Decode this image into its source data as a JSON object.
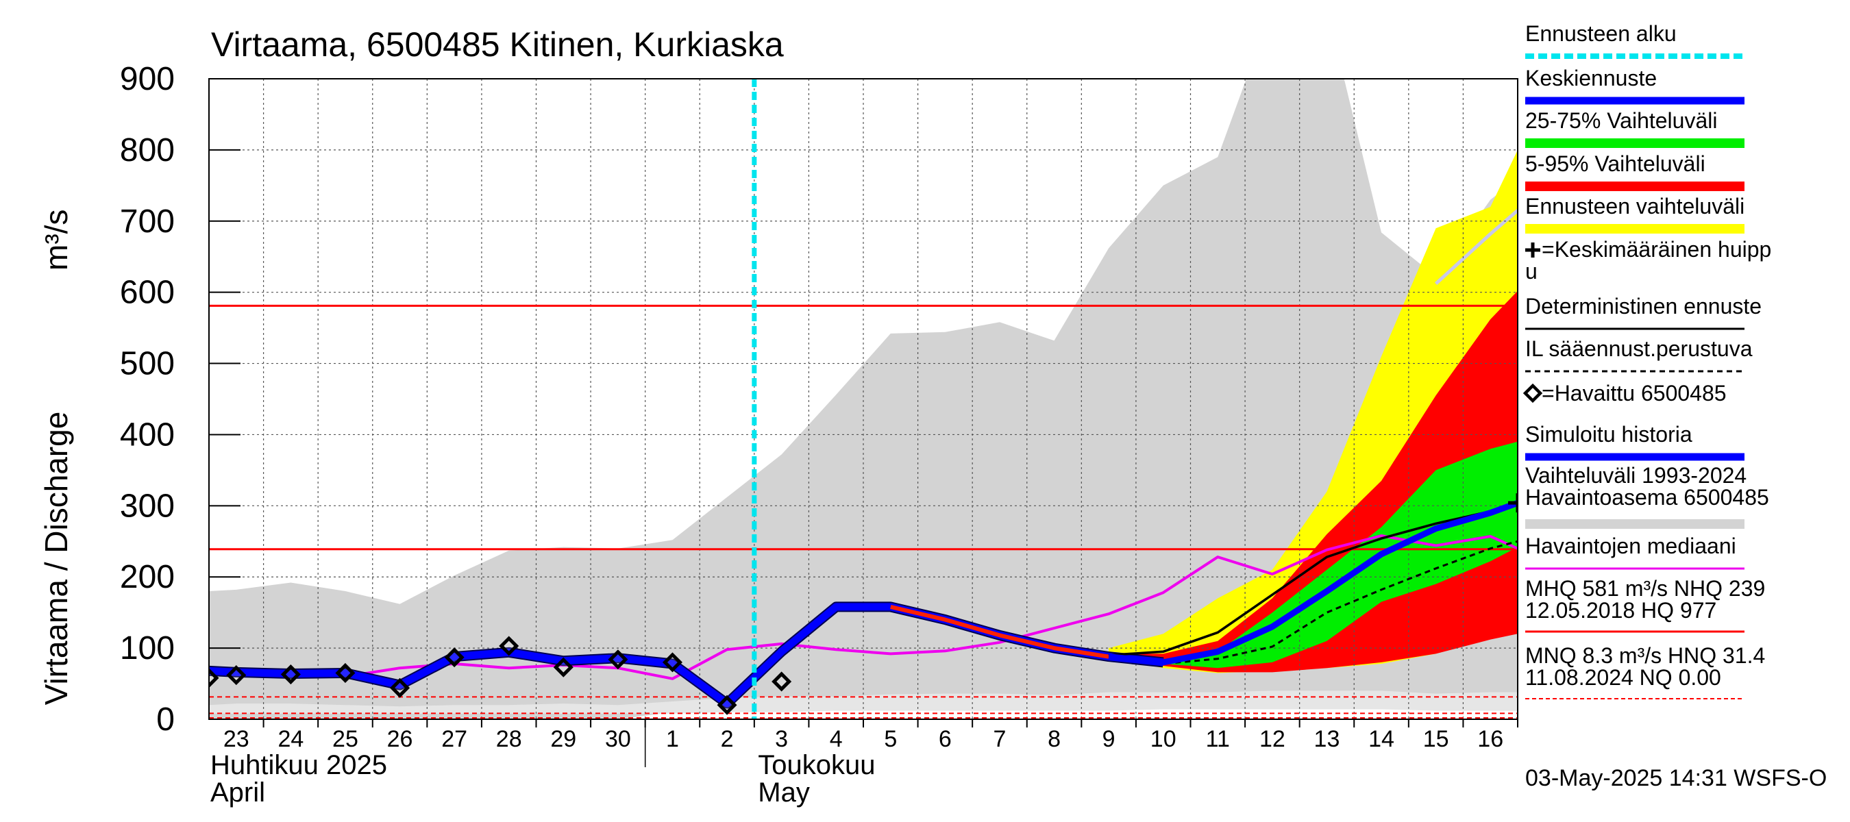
{
  "chart_data": {
    "type": "area",
    "title": "Virtaama, 6500485 Kitinen, Kurkiaska",
    "ylabel": "Virtaama / Discharge",
    "yunit": "m³/s",
    "ylim": [
      0,
      900
    ],
    "yticks": [
      0,
      100,
      200,
      300,
      400,
      500,
      600,
      700,
      800,
      900
    ],
    "xlim": [
      -0.5,
      23.5
    ],
    "xticks": [
      {
        "i": 0,
        "label": "23"
      },
      {
        "i": 1,
        "label": "24"
      },
      {
        "i": 2,
        "label": "25"
      },
      {
        "i": 3,
        "label": "26"
      },
      {
        "i": 4,
        "label": "27"
      },
      {
        "i": 5,
        "label": "28"
      },
      {
        "i": 6,
        "label": "29"
      },
      {
        "i": 7,
        "label": "30"
      },
      {
        "i": 8,
        "label": "1"
      },
      {
        "i": 9,
        "label": "2"
      },
      {
        "i": 10,
        "label": "3"
      },
      {
        "i": 11,
        "label": "4"
      },
      {
        "i": 12,
        "label": "5"
      },
      {
        "i": 13,
        "label": "6"
      },
      {
        "i": 14,
        "label": "7"
      },
      {
        "i": 15,
        "label": "8"
      },
      {
        "i": 16,
        "label": "9"
      },
      {
        "i": 17,
        "label": "10"
      },
      {
        "i": 18,
        "label": "11"
      },
      {
        "i": 19,
        "label": "12"
      },
      {
        "i": 20,
        "label": "13"
      },
      {
        "i": 21,
        "label": "14"
      },
      {
        "i": 22,
        "label": "15"
      },
      {
        "i": 23,
        "label": "16"
      }
    ],
    "month_labels": [
      {
        "x": -0.5,
        "line1": "Huhtikuu  2025",
        "line2": "April"
      },
      {
        "x": 8.5,
        "line1": "Toukokuu",
        "line2": "May"
      }
    ],
    "month_divider_x": 7.5,
    "forecast_start_x": 9.5,
    "hlines": {
      "MHQ": 581,
      "NHQ": 239,
      "MNQ": 8.3,
      "HNQ": 31.4,
      "NQ": 0.0
    },
    "history_range": {
      "x": [
        -0.5,
        0,
        1,
        2,
        3,
        4,
        5,
        6,
        7,
        8,
        9,
        10,
        11,
        12,
        13,
        14,
        15,
        16,
        17,
        18,
        19,
        20,
        21,
        22,
        23,
        23.5
      ],
      "upper": [
        180,
        182,
        192,
        180,
        162,
        202,
        237,
        242,
        240,
        252,
        312,
        372,
        456,
        542,
        544,
        558,
        532,
        662,
        750,
        790,
        1000,
        1000,
        684,
        622,
        730,
        760
      ],
      "lower": [
        0,
        0,
        0,
        0,
        0,
        0,
        0,
        0,
        0,
        10,
        12,
        15,
        18,
        20,
        20,
        22,
        20,
        25,
        25,
        28,
        30,
        30,
        28,
        26,
        28,
        28
      ]
    },
    "history_lower_band": {
      "x": [
        -0.5,
        0,
        1,
        2,
        3,
        4,
        5,
        6,
        7,
        8,
        9,
        10,
        11,
        12,
        13,
        14,
        15,
        16,
        17,
        18,
        19,
        20,
        21,
        22,
        23,
        23.5
      ],
      "upper": [
        20,
        22,
        22,
        20,
        18,
        20,
        20,
        22,
        20,
        25,
        30,
        32,
        32,
        35,
        36,
        36,
        34,
        38,
        38,
        38,
        40,
        40,
        40,
        36,
        38,
        38
      ],
      "lower": [
        8,
        8,
        8,
        8,
        8,
        8,
        8,
        8,
        8,
        8,
        10,
        10,
        12,
        12,
        12,
        12,
        12,
        12,
        14,
        14,
        14,
        14,
        14,
        12,
        12,
        12
      ]
    },
    "forecast_x": [
      16,
      17,
      18,
      19,
      20,
      21,
      22,
      23,
      23.5
    ],
    "ennuste_range": {
      "upper": [
        100,
        120,
        170,
        210,
        320,
        510,
        690,
        720,
        800
      ],
      "lower": [
        85,
        72,
        65,
        68,
        72,
        78,
        92,
        122,
        136
      ]
    },
    "p5_95": {
      "upper": [
        92,
        92,
        110,
        170,
        260,
        335,
        455,
        562,
        602
      ],
      "lower": [
        86,
        75,
        66,
        66,
        72,
        80,
        92,
        112,
        120
      ]
    },
    "p25_75": {
      "upper": [
        90,
        84,
        95,
        150,
        210,
        270,
        350,
        380,
        390
      ],
      "lower": [
        87,
        78,
        72,
        80,
        110,
        165,
        190,
        222,
        242
      ]
    },
    "keskiennuste": [
      88,
      80,
      95,
      130,
      180,
      232,
      268,
      290,
      304
    ],
    "deterministic": [
      90,
      95,
      122,
      175,
      228,
      254,
      275,
      292,
      306
    ],
    "il_forecast": [
      88,
      78,
      85,
      102,
      150,
      182,
      212,
      240,
      250
    ],
    "ennuste_upper_line": [
      null,
      null,
      null,
      null,
      null,
      null,
      612,
      682,
      715
    ],
    "peak_marker": {
      "x": 23.5,
      "y": 304
    },
    "simulated_history": {
      "x": [
        -0.5,
        0,
        1,
        2,
        3,
        4,
        5,
        6,
        7,
        8,
        9,
        10,
        11,
        12,
        13,
        14,
        15,
        16,
        17
      ],
      "y": [
        68,
        66,
        64,
        65,
        48,
        88,
        94,
        82,
        86,
        78,
        22,
        95,
        158,
        158,
        140,
        118,
        100,
        88,
        80
      ]
    },
    "median": {
      "x": [
        -0.5,
        0,
        1,
        2,
        3,
        4,
        5,
        6,
        7,
        8,
        9,
        10,
        11,
        12,
        13,
        14,
        15,
        16,
        17,
        18,
        19,
        20,
        21,
        22,
        23,
        23.5
      ],
      "y": [
        70,
        68,
        64,
        60,
        72,
        78,
        72,
        76,
        72,
        57,
        98,
        106,
        98,
        92,
        96,
        108,
        128,
        148,
        178,
        228,
        204,
        238,
        258,
        244,
        257,
        240
      ]
    },
    "observed": {
      "x": [
        -0.5,
        0,
        1,
        2,
        3,
        4,
        5,
        6,
        7,
        8,
        9,
        10
      ],
      "y": [
        58,
        62,
        63,
        65,
        44,
        87,
        103,
        73,
        84,
        80,
        20,
        53
      ]
    },
    "legend": [
      {
        "key": "ennusteen_alku",
        "label": "Ennusteen alku"
      },
      {
        "key": "keskiennuste",
        "label": "Keskiennuste"
      },
      {
        "key": "p25_75",
        "label": "25-75% Vaihteluväli"
      },
      {
        "key": "p5_95",
        "label": "5-95% Vaihteluväli"
      },
      {
        "key": "ennuste_range",
        "label": "Ennusteen vaihteluväli"
      },
      {
        "key": "peak",
        "label": "=Keskimääräinen huipp",
        "label2": "u"
      },
      {
        "key": "deterministic",
        "label": "Deterministinen ennuste"
      },
      {
        "key": "il",
        "label": "IL sääennust.perustuva"
      },
      {
        "key": "observed",
        "label": "=Havaittu 6500485"
      },
      {
        "key": "simulated",
        "label": "Simuloitu historia"
      },
      {
        "key": "history",
        "label": "Vaihteluväli 1993-2024",
        "label2": " Havaintoasema 6500485"
      },
      {
        "key": "median",
        "label": "Havaintojen mediaani"
      },
      {
        "key": "mhq",
        "label": "MHQ  581 m³/s NHQ  239",
        "label2": "12.05.2018 HQ  977"
      },
      {
        "key": "mnq",
        "label": "MNQ  8.3 m³/s HNQ 31.4",
        "label2": "11.08.2024 NQ 0.00"
      }
    ],
    "footer": "03-May-2025 14:31 WSFS-O"
  },
  "colors": {
    "history": "#d3d3d3",
    "ennuste_range": "#ffff00",
    "p5_95": "#ff0000",
    "p25_75": "#00ee00",
    "keskiennuste": "#0000ff",
    "simulated": "#0000ff",
    "median": "#ee00ee",
    "deterministic": "#000000",
    "forecast_start": "#00e5ee",
    "hline": "#ff0000",
    "ennuste_upper_line": "#c8c8e8"
  }
}
